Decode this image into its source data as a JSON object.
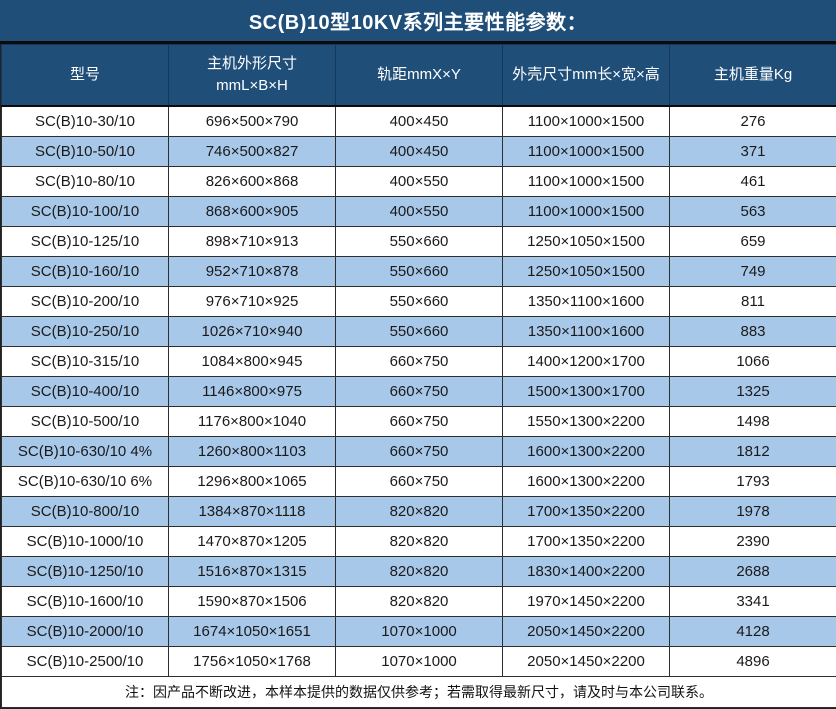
{
  "title": "SC(B)10型10KV系列主要性能参数：",
  "colors": {
    "header_bg": "#1F4E79",
    "header_text": "#FFFFFF",
    "row_alt_bg": "#A8C8EA",
    "row_bg": "#FFFFFF",
    "cell_text": "#1A1A1A",
    "grid_line": "#2E2E2E"
  },
  "columns": [
    "型号",
    "主机外形尺寸\nmmL×B×H",
    "轨距mmX×Y",
    "外壳尺寸mm长×宽×高",
    "主机重量Kg"
  ],
  "rows": [
    [
      "SC(B)10-30/10",
      "696×500×790",
      "400×450",
      "1100×1000×1500",
      "276"
    ],
    [
      "SC(B)10-50/10",
      "746×500×827",
      "400×450",
      "1100×1000×1500",
      "371"
    ],
    [
      "SC(B)10-80/10",
      "826×600×868",
      "400×550",
      "1100×1000×1500",
      "461"
    ],
    [
      "SC(B)10-100/10",
      "868×600×905",
      "400×550",
      "1100×1000×1500",
      "563"
    ],
    [
      "SC(B)10-125/10",
      "898×710×913",
      "550×660",
      "1250×1050×1500",
      "659"
    ],
    [
      "SC(B)10-160/10",
      "952×710×878",
      "550×660",
      "1250×1050×1500",
      "749"
    ],
    [
      "SC(B)10-200/10",
      "976×710×925",
      "550×660",
      "1350×1100×1600",
      "811"
    ],
    [
      "SC(B)10-250/10",
      "1026×710×940",
      "550×660",
      "1350×1100×1600",
      "883"
    ],
    [
      "SC(B)10-315/10",
      "1084×800×945",
      "660×750",
      "1400×1200×1700",
      "1066"
    ],
    [
      "SC(B)10-400/10",
      "1146×800×975",
      "660×750",
      "1500×1300×1700",
      "1325"
    ],
    [
      "SC(B)10-500/10",
      "1176×800×1040",
      "660×750",
      "1550×1300×2200",
      "1498"
    ],
    [
      "SC(B)10-630/10 4%",
      "1260×800×1103",
      "660×750",
      "1600×1300×2200",
      "1812"
    ],
    [
      "SC(B)10-630/10 6%",
      "1296×800×1065",
      "660×750",
      "1600×1300×2200",
      "1793"
    ],
    [
      "SC(B)10-800/10",
      "1384×870×1118",
      "820×820",
      "1700×1350×2200",
      "1978"
    ],
    [
      "SC(B)10-1000/10",
      "1470×870×1205",
      "820×820",
      "1700×1350×2200",
      "2390"
    ],
    [
      "SC(B)10-1250/10",
      "1516×870×1315",
      "820×820",
      "1830×1400×2200",
      "2688"
    ],
    [
      "SC(B)10-1600/10",
      "1590×870×1506",
      "820×820",
      "1970×1450×2200",
      "3341"
    ],
    [
      "SC(B)10-2000/10",
      "1674×1050×1651",
      "1070×1000",
      "2050×1450×2200",
      "4128"
    ],
    [
      "SC(B)10-2500/10",
      "1756×1050×1768",
      "1070×1000",
      "2050×1450×2200",
      "4896"
    ]
  ],
  "note": "注：因产品不断改进，本样本提供的数据仅供参考；若需取得最新尺寸，请及时与本公司联系。"
}
